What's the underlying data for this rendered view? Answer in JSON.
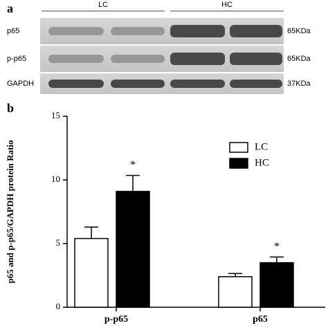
{
  "blot": {
    "label": "a",
    "groups": [
      "LC",
      "HC"
    ],
    "rows": [
      {
        "name": "p65",
        "size": "65KDa"
      },
      {
        "name": "p-p65",
        "size": "65KDa"
      },
      {
        "name": "GAPDH",
        "size": "37KDa"
      }
    ]
  },
  "chart_data": {
    "type": "bar",
    "label": "b",
    "ylabel": "p65 and p-p65/GAPDH protein Ratio",
    "categories": [
      "p-p65",
      "p65"
    ],
    "series": [
      {
        "name": "LC",
        "color": "#ffffff",
        "values": [
          5.4,
          2.4
        ],
        "errors": [
          0.9,
          0.25
        ]
      },
      {
        "name": "HC",
        "color": "#000000",
        "values": [
          9.1,
          3.5
        ],
        "errors": [
          1.25,
          0.45
        ],
        "annotations": [
          "*",
          "*"
        ]
      }
    ],
    "ylim": [
      0,
      15
    ],
    "yticks": [
      0,
      5,
      10,
      15
    ],
    "legend": "upper right"
  }
}
